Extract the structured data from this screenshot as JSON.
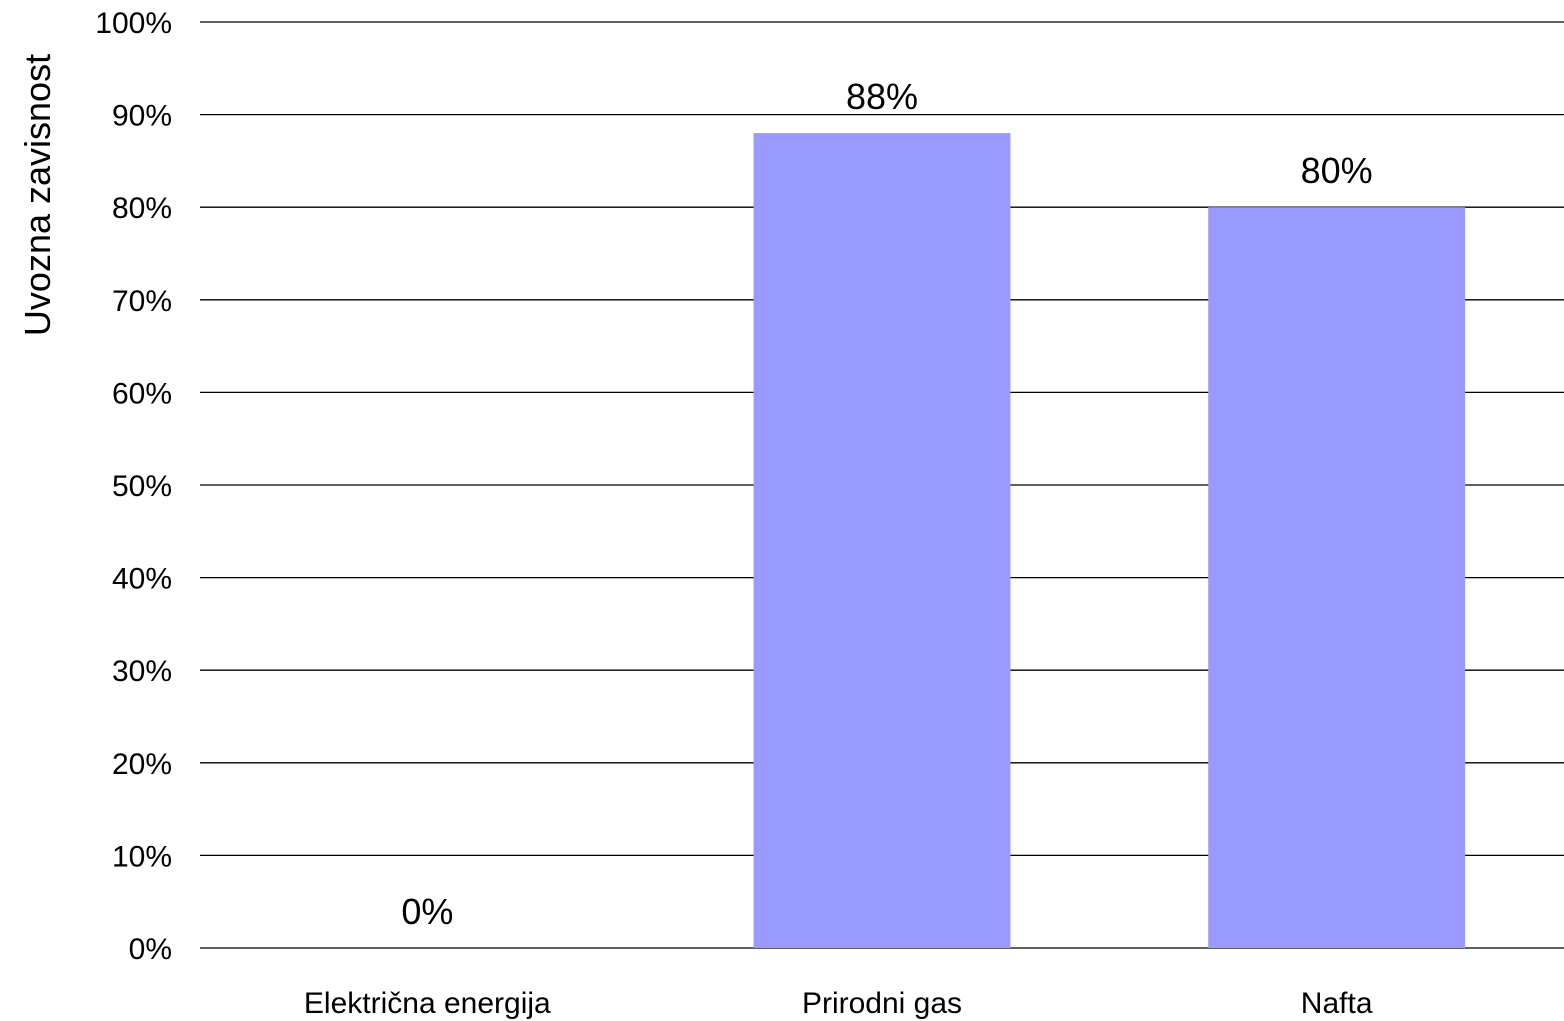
{
  "chart_data": {
    "type": "bar",
    "title": "",
    "xlabel": "",
    "ylabel": "Uvozna zavisnost",
    "categories": [
      "Električna energija",
      "Prirodni gas",
      "Nafta"
    ],
    "values": [
      0,
      88,
      80
    ],
    "data_labels": [
      "0%",
      "88%",
      "80%"
    ],
    "ylim": [
      0,
      100
    ],
    "yticks": [
      0,
      10,
      20,
      30,
      40,
      50,
      60,
      70,
      80,
      90,
      100
    ],
    "ytick_labels": [
      "0%",
      "10%",
      "20%",
      "30%",
      "40%",
      "50%",
      "60%",
      "70%",
      "80%",
      "90%",
      "100%"
    ],
    "grid": true,
    "legend": "none",
    "bar_color": "#9999ff"
  }
}
